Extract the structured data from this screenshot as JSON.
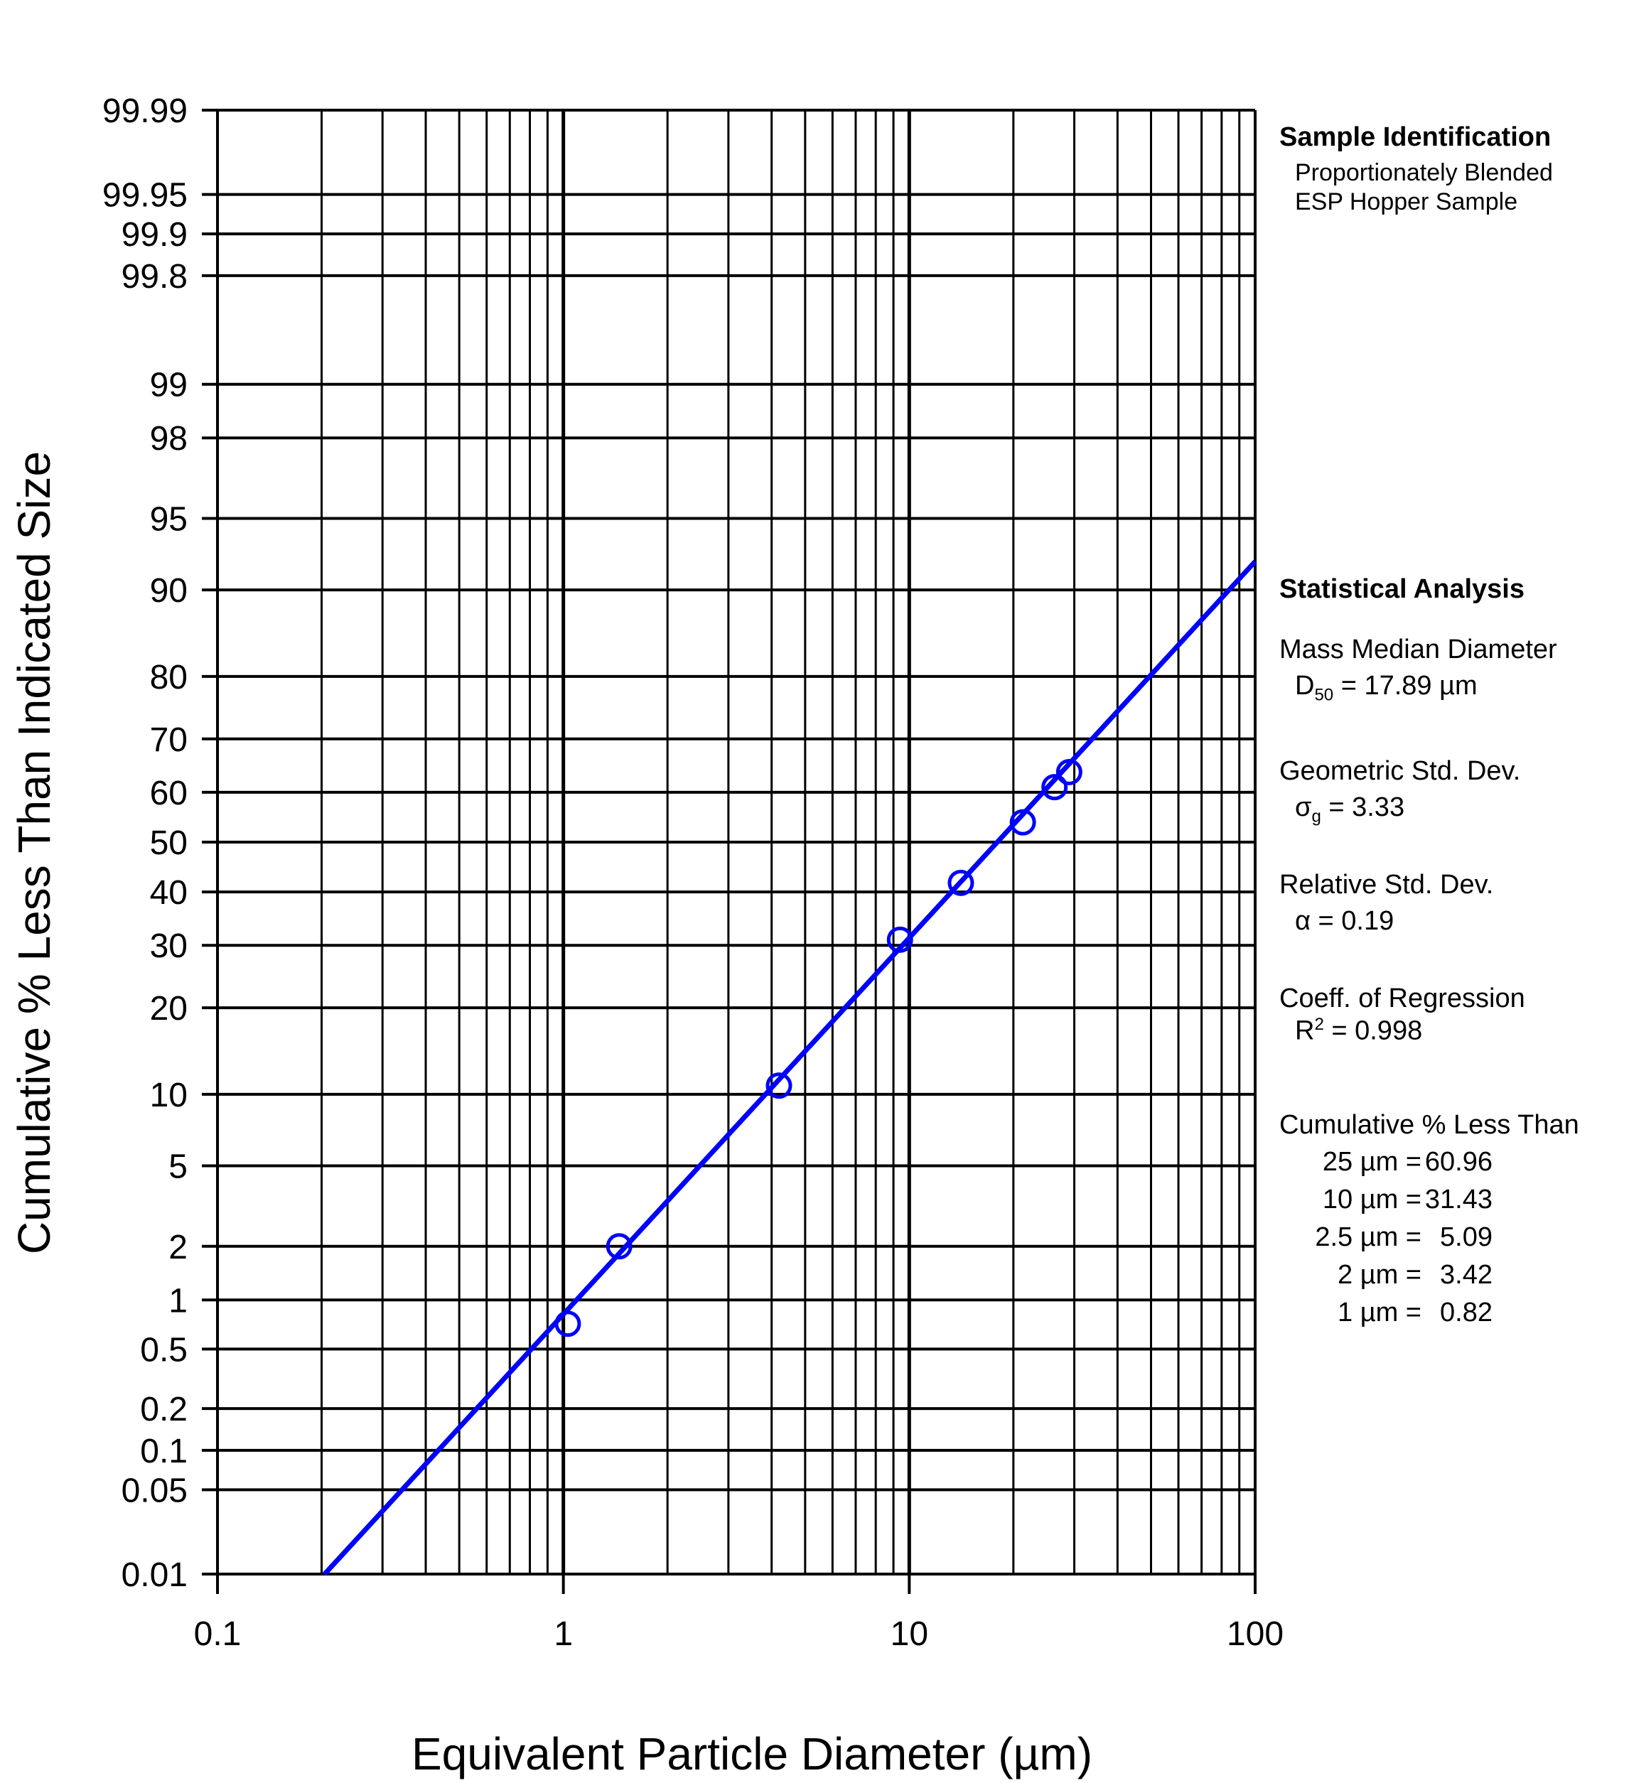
{
  "chart_data": {
    "type": "scatter",
    "xlabel": "Equivalent Particle Diameter (µm)",
    "ylabel": "Cumulative % Less Than Indicated Size",
    "x_scale": "log",
    "y_scale": "probability",
    "xlim": [
      0.1,
      100
    ],
    "ylim": [
      0.01,
      99.99
    ],
    "x_ticks": [
      {
        "value": 0.1,
        "label": "0.1"
      },
      {
        "value": 1,
        "label": "1"
      },
      {
        "value": 10,
        "label": "10"
      },
      {
        "value": 100,
        "label": "100"
      }
    ],
    "y_ticks": [
      {
        "value": 0.01,
        "label": "0.01"
      },
      {
        "value": 0.05,
        "label": "0.05"
      },
      {
        "value": 0.1,
        "label": "0.1"
      },
      {
        "value": 0.2,
        "label": "0.2"
      },
      {
        "value": 0.5,
        "label": "0.5"
      },
      {
        "value": 1,
        "label": "1"
      },
      {
        "value": 2,
        "label": "2"
      },
      {
        "value": 5,
        "label": "5"
      },
      {
        "value": 10,
        "label": "10"
      },
      {
        "value": 20,
        "label": "20"
      },
      {
        "value": 30,
        "label": "30"
      },
      {
        "value": 40,
        "label": "40"
      },
      {
        "value": 50,
        "label": "50"
      },
      {
        "value": 60,
        "label": "60"
      },
      {
        "value": 70,
        "label": "70"
      },
      {
        "value": 80,
        "label": "80"
      },
      {
        "value": 90,
        "label": "90"
      },
      {
        "value": 95,
        "label": "95"
      },
      {
        "value": 98,
        "label": "98"
      },
      {
        "value": 99,
        "label": "99"
      },
      {
        "value": 99.8,
        "label": "99.8"
      },
      {
        "value": 99.9,
        "label": "99.9"
      },
      {
        "value": 99.95,
        "label": "99.95"
      },
      {
        "value": 99.99,
        "label": "99.99"
      }
    ],
    "grid": true,
    "points": {
      "marker": "open-circle",
      "color": "#0000ff",
      "x": [
        1.03,
        1.45,
        4.2,
        9.4,
        14.1,
        21.3,
        26.3,
        29.0
      ],
      "y": [
        0.72,
        2.0,
        10.8,
        31.0,
        41.8,
        54.0,
        61.0,
        63.9
      ]
    },
    "fit_line": {
      "color": "#0000ff",
      "x": [
        0.204,
        100
      ],
      "y": [
        0.01,
        92.3
      ]
    }
  },
  "sample_identification": {
    "heading": "Sample Identification",
    "line1": "Proportionately Blended",
    "line2": "ESP Hopper Sample"
  },
  "statistical_analysis": {
    "heading": "Statistical Analysis",
    "mmd_label": "Mass Median Diameter",
    "mmd_symbol": "D",
    "mmd_subscript": "50",
    "mmd_value": " = 17.89 µm",
    "gsd_label": "Geometric Std. Dev.",
    "gsd_symbol": "σ",
    "gsd_subscript": "g",
    "gsd_value": " = 3.33",
    "rsd_label": "Relative Std. Dev.",
    "rsd_text": "α = 0.19",
    "reg_label": "Coeff. of Regression",
    "reg_symbol": "R",
    "reg_superscript": "2",
    "reg_value": " = 0.998",
    "cum_label": "Cumulative % Less Than",
    "cum_rows": [
      {
        "size": "25 µm =",
        "value": "60.96"
      },
      {
        "size": "10 µm =",
        "value": "31.43"
      },
      {
        "size": "2.5 µm =",
        "value": "5.09"
      },
      {
        "size": "2 µm =",
        "value": "3.42"
      },
      {
        "size": "1 µm =",
        "value": "0.82"
      }
    ]
  }
}
